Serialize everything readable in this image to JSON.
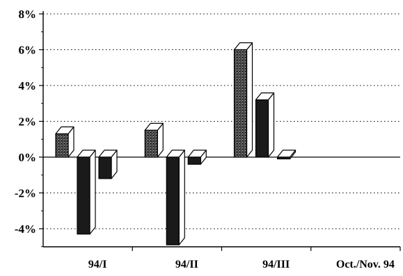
{
  "chart_data": {
    "type": "bar",
    "style": "3d",
    "categories": [
      "94/I",
      "94/II",
      "94/III",
      "Oct./Nov. 94"
    ],
    "series": [
      {
        "values": [
          1.3,
          1.5,
          6.0,
          null
        ],
        "fill": "stippled-dark"
      },
      {
        "values": [
          -4.3,
          -4.9,
          3.2,
          null
        ],
        "fill": "solid-dark"
      },
      {
        "values": [
          -1.2,
          -0.4,
          -0.1,
          null
        ],
        "fill": "solid-dark"
      }
    ],
    "yticks": [
      "8%",
      "6%",
      "4%",
      "2%",
      "0%",
      "-2%",
      "-4%"
    ],
    "ylim": [
      -5,
      8
    ],
    "grid": "dotted-horizontal",
    "legend": "none",
    "colors": {
      "front": "#1a1a1a",
      "side": "#ffffff",
      "top": "#ffffff",
      "stipple": "#9a9a9a"
    }
  }
}
